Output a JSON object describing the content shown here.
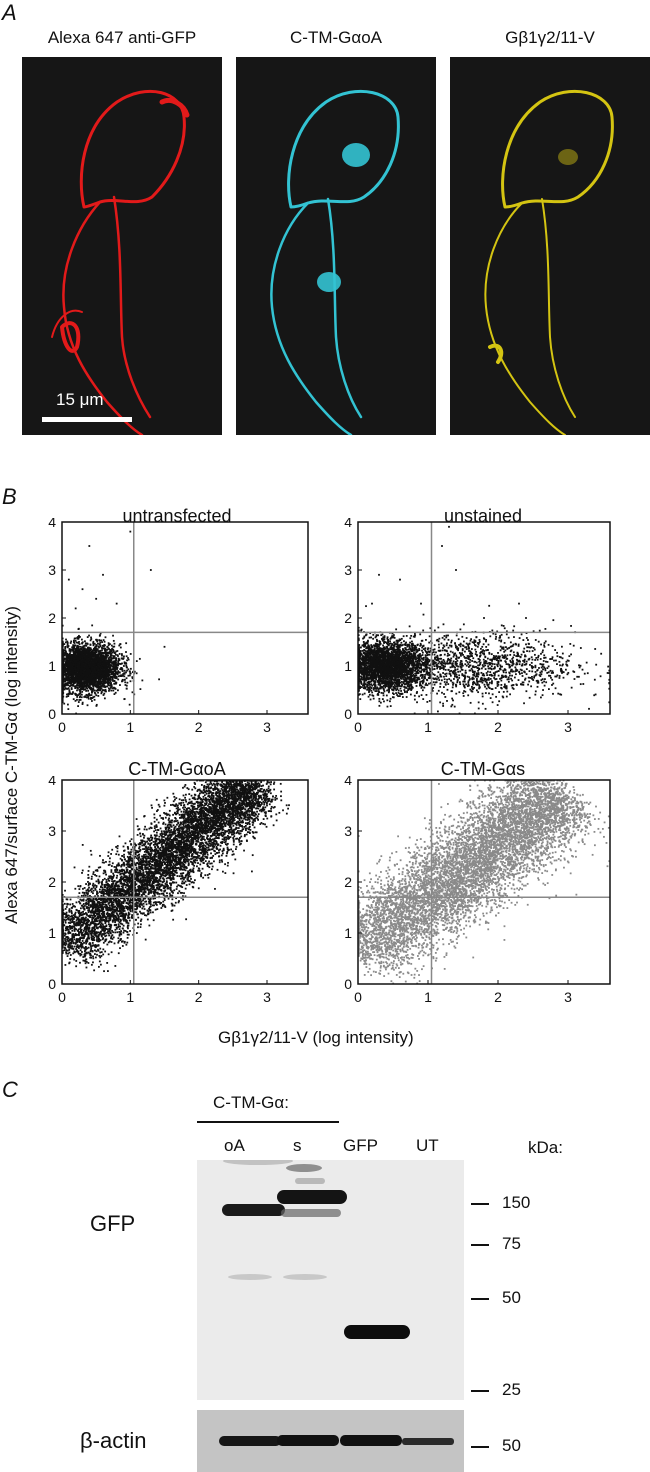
{
  "panel_a": {
    "letter": "A",
    "labels": [
      "Alexa 647 anti-GFP",
      "C-TM-GαoA",
      "Gβ1γ2/11-V"
    ],
    "scale_bar": "15 μm",
    "colors": {
      "red": "#e21a1a",
      "cyan": "#33c3d3",
      "yellow": "#d4c412",
      "background": "#161616"
    }
  },
  "panel_b": {
    "letter": "B",
    "ylabel": "Alexa 647/surface C-TM-Gα (log intensity)",
    "xlabel": "Gβ1γ2/11-V (log intensity)"
  },
  "chart_data": [
    {
      "type": "scatter",
      "title": "untransfected",
      "xlim": [
        0,
        3.6
      ],
      "ylim": [
        0,
        4
      ],
      "xticks": [
        "0",
        "1",
        "2",
        "3"
      ],
      "yticks": [
        "0",
        "1",
        "2",
        "3",
        "4"
      ],
      "gates": {
        "x": 1.05,
        "y": 1.7
      },
      "color": "#111111",
      "clusters": [
        {
          "x_mean": 0.35,
          "x_sd": 0.25,
          "y_mean": 0.95,
          "y_sd": 0.25,
          "n": 3500
        }
      ],
      "sparse_points": [
        [
          0.1,
          2.8
        ],
        [
          0.4,
          3.5
        ],
        [
          0.2,
          2.2
        ],
        [
          0.6,
          2.9
        ],
        [
          1.3,
          3.0
        ],
        [
          1.0,
          3.8
        ],
        [
          0.3,
          2.6
        ],
        [
          0.8,
          2.3
        ],
        [
          1.5,
          1.4
        ],
        [
          0.5,
          2.4
        ]
      ]
    },
    {
      "type": "scatter",
      "title": "unstained",
      "xlim": [
        0,
        3.6
      ],
      "ylim": [
        0,
        4
      ],
      "xticks": [
        "0",
        "1",
        "2",
        "3"
      ],
      "yticks": [
        "0",
        "1",
        "2",
        "3",
        "4"
      ],
      "gates": {
        "x": 1.05,
        "y": 1.7
      },
      "color": "#111111",
      "clusters": [
        {
          "x_mean": 0.4,
          "x_sd": 0.28,
          "y_mean": 1.0,
          "y_sd": 0.25,
          "n": 2800
        },
        {
          "x_mean": 1.6,
          "x_sd": 0.75,
          "y_mean": 1.0,
          "y_sd": 0.35,
          "n": 1400
        }
      ],
      "sparse_points": [
        [
          0.3,
          2.9
        ],
        [
          0.6,
          2.8
        ],
        [
          1.2,
          3.5
        ],
        [
          1.3,
          3.9
        ],
        [
          1.4,
          3.0
        ],
        [
          2.3,
          2.3
        ],
        [
          2.4,
          2.0
        ],
        [
          0.9,
          2.3
        ],
        [
          0.2,
          2.3
        ],
        [
          1.8,
          2.0
        ]
      ]
    },
    {
      "type": "scatter",
      "title": "C-TM-GαoA",
      "xlim": [
        0,
        3.6
      ],
      "ylim": [
        0,
        4
      ],
      "xticks": [
        "0",
        "1",
        "2",
        "3"
      ],
      "yticks": [
        "0",
        "1",
        "2",
        "3",
        "4"
      ],
      "gates": {
        "x": 1.05,
        "y": 1.7
      },
      "color": "#111111",
      "diagonal": {
        "x_start": 0.0,
        "x_end": 2.8,
        "y_start": 0.7,
        "y_end": 3.95,
        "spread": 0.32,
        "n": 7000
      },
      "sparse_points": [
        [
          2.8,
          3.2
        ],
        [
          2.5,
          2.6
        ],
        [
          3.0,
          3.5
        ],
        [
          0.4,
          2.3
        ]
      ]
    },
    {
      "type": "scatter",
      "title": "C-TM-Gαs",
      "xlim": [
        0,
        3.6
      ],
      "ylim": [
        0,
        4
      ],
      "xticks": [
        "0",
        "1",
        "2",
        "3"
      ],
      "yticks": [
        "0",
        "1",
        "2",
        "3",
        "4"
      ],
      "gates": {
        "x": 1.05,
        "y": 1.7
      },
      "color": "#8a8a8a",
      "diagonal": {
        "x_start": 0.0,
        "x_end": 2.9,
        "y_start": 0.55,
        "y_end": 3.75,
        "spread": 0.45,
        "n": 7000
      },
      "sparse_points": [
        [
          2.9,
          3.1
        ],
        [
          2.6,
          2.4
        ],
        [
          3.1,
          3.6
        ],
        [
          0.3,
          2.4
        ]
      ]
    }
  ],
  "panel_c": {
    "letter": "C",
    "construct_label": "C-TM-Gα:",
    "lanes": [
      "oA",
      "s",
      "GFP",
      "UT"
    ],
    "kda_label": "kDa:",
    "gfp_label": "GFP",
    "actin_label": "β-actin",
    "markers": [
      {
        "label": "150",
        "kda": 150
      },
      {
        "label": "75",
        "kda": 75
      },
      {
        "label": "50",
        "kda": 50
      },
      {
        "label": "25",
        "kda": 25
      }
    ],
    "actin_marker": "50"
  }
}
